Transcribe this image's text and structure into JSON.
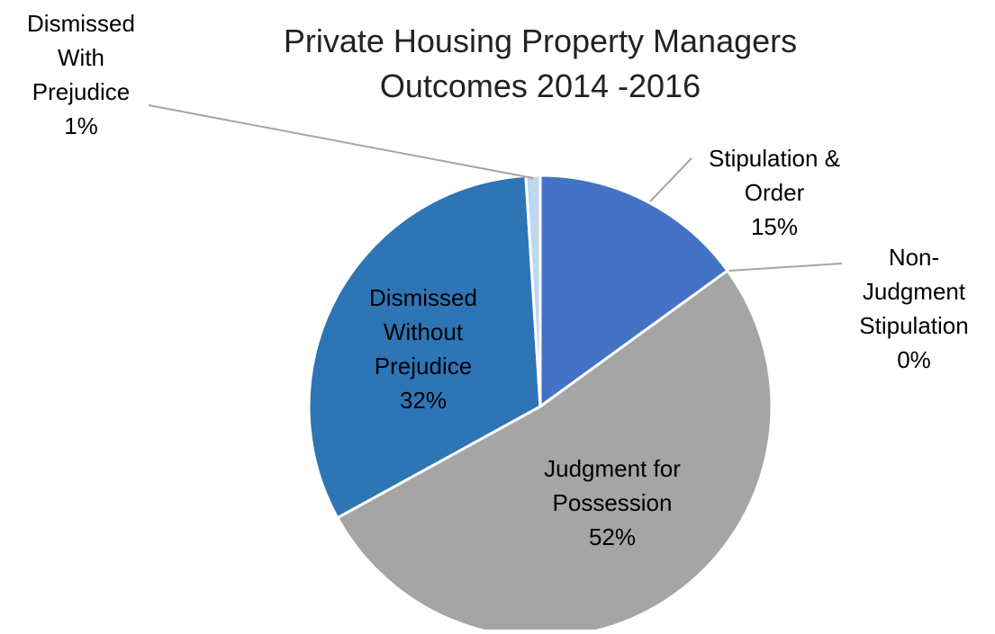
{
  "chart_data": {
    "type": "pie",
    "title": "Private Housing Property Managers Outcomes 2014 - 2016",
    "categories": [
      "Stipulation & Order",
      "Non-Judgment Stipulation",
      "Judgment for Possession",
      "Dismissed Without Prejudice",
      "Dismissed With Prejudice"
    ],
    "values": [
      15,
      0,
      52,
      32,
      1
    ],
    "value_labels": [
      "15%",
      "0%",
      "52%",
      "32%",
      "1%"
    ],
    "colors": [
      "#4472c4",
      "#ed7d31",
      "#a5a5a5",
      "#2e75b6",
      "#bdd7ee"
    ]
  }
}
